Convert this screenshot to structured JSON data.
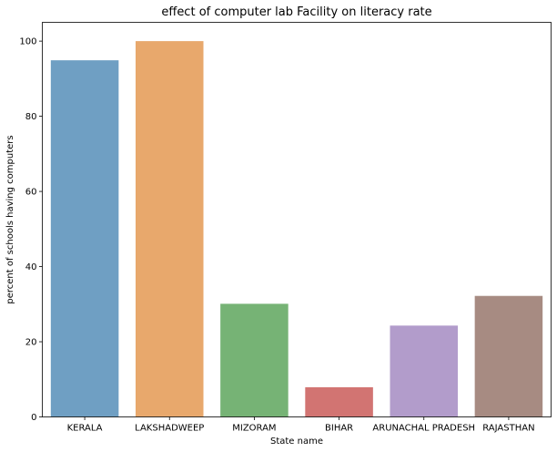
{
  "chart_data": {
    "type": "bar",
    "title": "effect of computer lab Facility on literacy rate",
    "xlabel": "State name",
    "ylabel": "percent of schools having computers",
    "categories": [
      "KERALA",
      "LAKSHADWEEP",
      "MIZORAM",
      "BIHAR",
      "ARUNACHAL PRADESH",
      "RAJASTHAN"
    ],
    "values": [
      94.9,
      100,
      30.1,
      7.9,
      24.3,
      32.2
    ],
    "colors": [
      "#6f9fc3",
      "#e8a86c",
      "#76b375",
      "#d27472",
      "#b29ccb",
      "#a78b82"
    ],
    "ylim": [
      0,
      105
    ],
    "yticks": [
      0,
      20,
      40,
      60,
      80,
      100
    ],
    "grid": false,
    "legend": "none"
  }
}
